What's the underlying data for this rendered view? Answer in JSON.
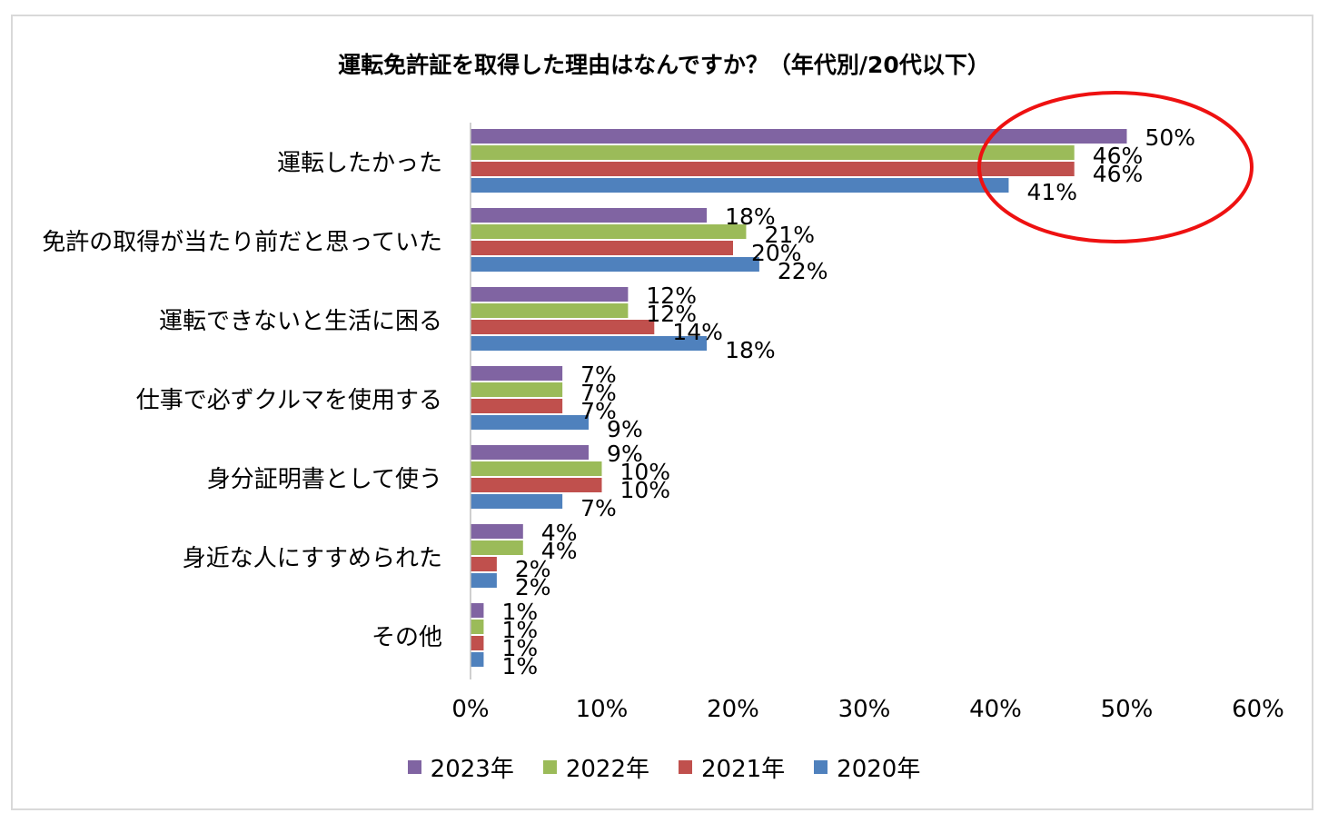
{
  "title": "運転免許証を取得した理由はなんですか？（年代別/20代以下）",
  "chart_data": {
    "type": "bar",
    "orientation": "horizontal",
    "title": "運転免許証を取得した理由はなんですか？（年代別/20代以下）",
    "categories": [
      "運転したかった",
      "免許の取得が当たり前だと思っていた",
      "運転できないと生活に困る",
      "仕事で必ずクルマを使用する",
      "身分証明書として使う",
      "身近な人にすすめられた",
      "その他"
    ],
    "series": [
      {
        "name": "2023年",
        "color": "#8064a2",
        "values": [
          50,
          18,
          12,
          7,
          9,
          4,
          1
        ]
      },
      {
        "name": "2022年",
        "color": "#9bbb59",
        "values": [
          46,
          21,
          12,
          7,
          10,
          4,
          1
        ]
      },
      {
        "name": "2021年",
        "color": "#c0504d",
        "values": [
          46,
          20,
          14,
          7,
          10,
          2,
          1
        ]
      },
      {
        "name": "2020年",
        "color": "#4f81bd",
        "values": [
          41,
          22,
          18,
          9,
          7,
          2,
          1
        ]
      }
    ],
    "value_suffix": "%",
    "xlim": [
      0,
      60
    ],
    "xticks": [
      0,
      10,
      20,
      30,
      40,
      50,
      60
    ],
    "xtick_labels": [
      "0%",
      "10%",
      "20%",
      "30%",
      "40%",
      "50%",
      "60%"
    ],
    "grid": false,
    "legend_position": "bottom",
    "annotation": "red-ellipse-highlight"
  }
}
